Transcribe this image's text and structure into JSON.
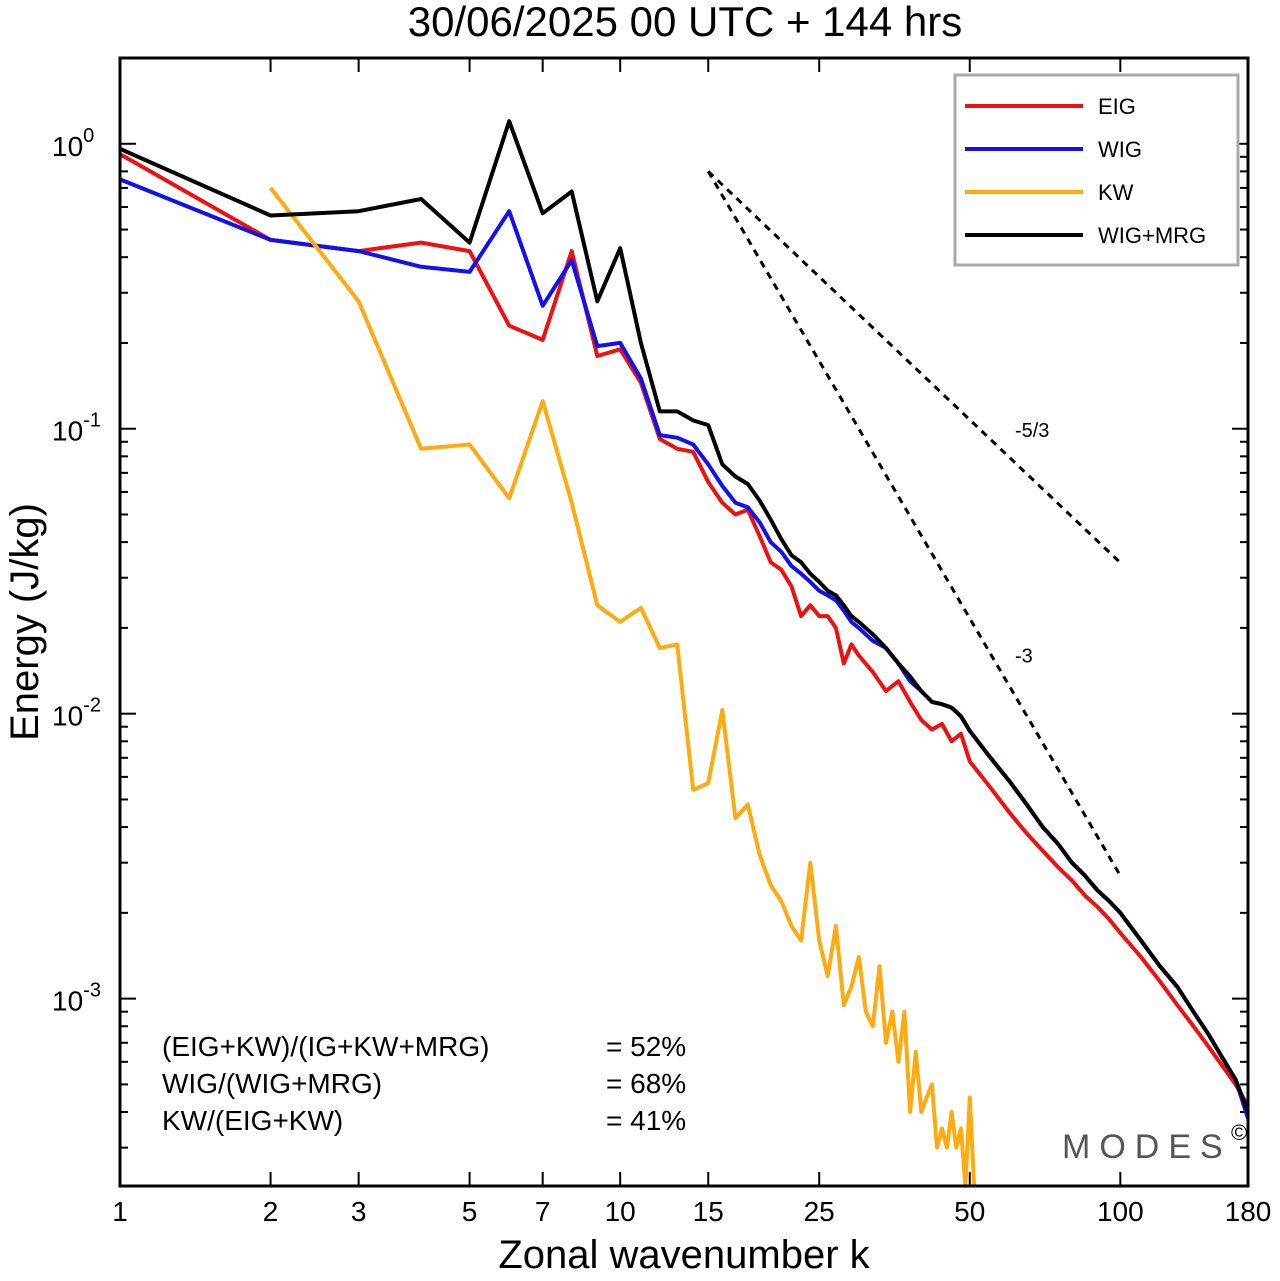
{
  "chart_data": {
    "type": "line",
    "title": "30/06/2025  00 UTC  + 144 hrs",
    "xlabel": "Zonal wavenumber k",
    "ylabel": "Energy (J/kg)",
    "xscale": "log",
    "yscale": "log",
    "xlim": [
      1,
      180
    ],
    "ylim": [
      0.00022,
      2.0
    ],
    "x_ticks": [
      1,
      2,
      3,
      5,
      7,
      10,
      15,
      25,
      50,
      100,
      180
    ],
    "x_tick_labels": [
      "1",
      "2",
      "3",
      "5",
      "7",
      "10",
      "15",
      "25",
      "50",
      "100",
      "180"
    ],
    "y_ticks": [
      {
        "value": 1,
        "base": "10",
        "exp": "0"
      },
      {
        "value": 0.1,
        "base": "10",
        "exp": "-1"
      },
      {
        "value": 0.01,
        "base": "10",
        "exp": "-2"
      },
      {
        "value": 0.001,
        "base": "10",
        "exp": "-3"
      }
    ],
    "legend_position": "top-right",
    "series": [
      {
        "name": "EIG",
        "color": "#ee1111",
        "points": [
          [
            1,
            0.92
          ],
          [
            2,
            0.46
          ],
          [
            3,
            0.42
          ],
          [
            4,
            0.45
          ],
          [
            5,
            0.42
          ],
          [
            6,
            0.23
          ],
          [
            7,
            0.205
          ],
          [
            8,
            0.42
          ],
          [
            9,
            0.18
          ],
          [
            10,
            0.19
          ],
          [
            11,
            0.145
          ],
          [
            12,
            0.092
          ],
          [
            13,
            0.085
          ],
          [
            14,
            0.083
          ],
          [
            15,
            0.065
          ],
          [
            16,
            0.055
          ],
          [
            17,
            0.05
          ],
          [
            18,
            0.052
          ],
          [
            19,
            0.042
          ],
          [
            20,
            0.034
          ],
          [
            21,
            0.032
          ],
          [
            22,
            0.028
          ],
          [
            23,
            0.022
          ],
          [
            24,
            0.024
          ],
          [
            25,
            0.022
          ],
          [
            26,
            0.022
          ],
          [
            27,
            0.02
          ],
          [
            28,
            0.015
          ],
          [
            29,
            0.0175
          ],
          [
            30,
            0.016
          ],
          [
            32,
            0.014
          ],
          [
            34,
            0.012
          ],
          [
            36,
            0.013
          ],
          [
            38,
            0.011
          ],
          [
            40,
            0.0095
          ],
          [
            42,
            0.0088
          ],
          [
            44,
            0.0092
          ],
          [
            46,
            0.008
          ],
          [
            48,
            0.0085
          ],
          [
            50,
            0.0068
          ],
          [
            55,
            0.0055
          ],
          [
            60,
            0.0045
          ],
          [
            65,
            0.0038
          ],
          [
            70,
            0.0033
          ],
          [
            75,
            0.0029
          ],
          [
            80,
            0.0026
          ],
          [
            85,
            0.0023
          ],
          [
            90,
            0.0021
          ],
          [
            95,
            0.0019
          ],
          [
            100,
            0.0017
          ],
          [
            110,
            0.0014
          ],
          [
            120,
            0.00115
          ],
          [
            130,
            0.00095
          ],
          [
            140,
            0.0008
          ],
          [
            150,
            0.00068
          ],
          [
            160,
            0.00058
          ],
          [
            170,
            0.0005
          ],
          [
            180,
            0.00042
          ]
        ]
      },
      {
        "name": "WIG",
        "color": "#1111ee",
        "points": [
          [
            1,
            0.75
          ],
          [
            2,
            0.46
          ],
          [
            3,
            0.42
          ],
          [
            4,
            0.37
          ],
          [
            5,
            0.355
          ],
          [
            6,
            0.58
          ],
          [
            7,
            0.27
          ],
          [
            8,
            0.39
          ],
          [
            9,
            0.195
          ],
          [
            10,
            0.2
          ],
          [
            11,
            0.15
          ],
          [
            12,
            0.095
          ],
          [
            13,
            0.093
          ],
          [
            14,
            0.088
          ],
          [
            15,
            0.075
          ],
          [
            16,
            0.063
          ],
          [
            17,
            0.055
          ],
          [
            18,
            0.053
          ],
          [
            19,
            0.047
          ],
          [
            20,
            0.04
          ],
          [
            21,
            0.037
          ],
          [
            22,
            0.033
          ],
          [
            23,
            0.031
          ],
          [
            24,
            0.029
          ],
          [
            25,
            0.027
          ],
          [
            26,
            0.026
          ],
          [
            27,
            0.025
          ],
          [
            28,
            0.023
          ],
          [
            29,
            0.021
          ],
          [
            30,
            0.02
          ],
          [
            32,
            0.018
          ],
          [
            34,
            0.017
          ],
          [
            36,
            0.015
          ],
          [
            38,
            0.013
          ],
          [
            40,
            0.012
          ],
          [
            42,
            0.011
          ],
          [
            44,
            0.0108
          ],
          [
            46,
            0.0105
          ],
          [
            48,
            0.0098
          ],
          [
            50,
            0.0087
          ],
          [
            55,
            0.007
          ],
          [
            60,
            0.0058
          ],
          [
            65,
            0.0048
          ],
          [
            70,
            0.004
          ],
          [
            75,
            0.0035
          ],
          [
            80,
            0.003
          ],
          [
            85,
            0.0027
          ],
          [
            90,
            0.0024
          ],
          [
            95,
            0.0022
          ],
          [
            100,
            0.002
          ],
          [
            110,
            0.0016
          ],
          [
            120,
            0.0013
          ],
          [
            130,
            0.0011
          ],
          [
            140,
            0.0009
          ],
          [
            150,
            0.00075
          ],
          [
            160,
            0.00062
          ],
          [
            170,
            0.00052
          ],
          [
            180,
            0.00038
          ]
        ]
      },
      {
        "name": "KW",
        "color": "#ffaa11",
        "points": [
          [
            2,
            0.7
          ],
          [
            3,
            0.28
          ],
          [
            4,
            0.085
          ],
          [
            5,
            0.088
          ],
          [
            6,
            0.057
          ],
          [
            7,
            0.125
          ],
          [
            8,
            0.055
          ],
          [
            9,
            0.024
          ],
          [
            10,
            0.021
          ],
          [
            11,
            0.0235
          ],
          [
            12,
            0.017
          ],
          [
            13,
            0.0175
          ],
          [
            14,
            0.0054
          ],
          [
            15,
            0.0057
          ],
          [
            16,
            0.0103
          ],
          [
            17,
            0.0043
          ],
          [
            18,
            0.0048
          ],
          [
            19,
            0.0032
          ],
          [
            20,
            0.0025
          ],
          [
            21,
            0.0022
          ],
          [
            22,
            0.0018
          ],
          [
            23,
            0.0016
          ],
          [
            24,
            0.003
          ],
          [
            25,
            0.0016
          ],
          [
            26,
            0.0012
          ],
          [
            27,
            0.0018
          ],
          [
            28,
            0.00095
          ],
          [
            29,
            0.0011
          ],
          [
            30,
            0.0014
          ],
          [
            31,
            0.0009
          ],
          [
            32,
            0.0008
          ],
          [
            33,
            0.0013
          ],
          [
            34,
            0.0007
          ],
          [
            35,
            0.0009
          ],
          [
            36,
            0.0006
          ],
          [
            37,
            0.0009
          ],
          [
            38,
            0.0004
          ],
          [
            39,
            0.00065
          ],
          [
            40,
            0.0004
          ],
          [
            41,
            0.00045
          ],
          [
            42,
            0.0005
          ],
          [
            43,
            0.0003
          ],
          [
            44,
            0.00035
          ],
          [
            45,
            0.0003
          ],
          [
            46,
            0.0004
          ],
          [
            47,
            0.0003
          ],
          [
            48,
            0.00035
          ],
          [
            49,
            0.00022
          ],
          [
            50,
            0.00045
          ],
          [
            51,
            0.00022
          ]
        ]
      },
      {
        "name": "WIG+MRG",
        "color": "#000000",
        "points": [
          [
            1,
            0.96
          ],
          [
            2,
            0.56
          ],
          [
            3,
            0.58
          ],
          [
            4,
            0.64
          ],
          [
            5,
            0.45
          ],
          [
            6,
            1.2
          ],
          [
            7,
            0.57
          ],
          [
            8,
            0.68
          ],
          [
            9,
            0.28
          ],
          [
            10,
            0.43
          ],
          [
            11,
            0.2
          ],
          [
            12,
            0.115
          ],
          [
            13,
            0.115
          ],
          [
            14,
            0.107
          ],
          [
            15,
            0.103
          ],
          [
            16,
            0.075
          ],
          [
            17,
            0.068
          ],
          [
            18,
            0.064
          ],
          [
            19,
            0.056
          ],
          [
            20,
            0.048
          ],
          [
            21,
            0.041
          ],
          [
            22,
            0.036
          ],
          [
            23,
            0.034
          ],
          [
            24,
            0.031
          ],
          [
            25,
            0.029
          ],
          [
            26,
            0.027
          ],
          [
            27,
            0.026
          ],
          [
            28,
            0.024
          ],
          [
            29,
            0.022
          ],
          [
            30,
            0.021
          ],
          [
            32,
            0.019
          ],
          [
            34,
            0.017
          ],
          [
            36,
            0.015
          ],
          [
            38,
            0.0135
          ],
          [
            40,
            0.012
          ],
          [
            42,
            0.011
          ],
          [
            44,
            0.0108
          ],
          [
            46,
            0.0105
          ],
          [
            48,
            0.0098
          ],
          [
            50,
            0.0087
          ],
          [
            55,
            0.007
          ],
          [
            60,
            0.0058
          ],
          [
            65,
            0.0048
          ],
          [
            70,
            0.004
          ],
          [
            75,
            0.0035
          ],
          [
            80,
            0.003
          ],
          [
            85,
            0.0027
          ],
          [
            90,
            0.0024
          ],
          [
            95,
            0.0022
          ],
          [
            100,
            0.002
          ],
          [
            110,
            0.0016
          ],
          [
            120,
            0.0013
          ],
          [
            130,
            0.0011
          ],
          [
            140,
            0.0009
          ],
          [
            150,
            0.00075
          ],
          [
            160,
            0.00062
          ],
          [
            170,
            0.00052
          ],
          [
            180,
            0.0004
          ]
        ]
      }
    ],
    "reference_slopes": [
      {
        "label": "-5/3",
        "x_start": 15,
        "y_start": 0.8,
        "x_end": 100,
        "slope": -1.6667
      },
      {
        "label": "-3",
        "x_start": 15,
        "y_start": 0.8,
        "x_end": 100,
        "slope": -3
      }
    ],
    "annotations": [
      {
        "name": "(EIG+KW)/(IG+KW+MRG)",
        "value": "= 52%"
      },
      {
        "name": "WIG/(WIG+MRG)",
        "value": "= 68%"
      },
      {
        "name": "KW/(EIG+KW)",
        "value": "= 41%"
      }
    ],
    "watermark": "MODES",
    "watermark_mark": "©"
  }
}
